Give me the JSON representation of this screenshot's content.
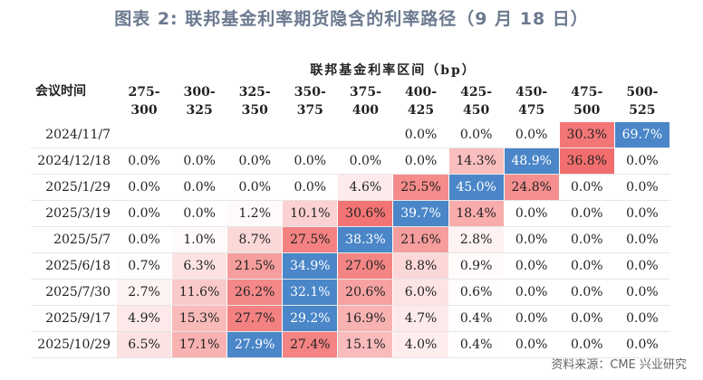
{
  "title": "图表 2:  联邦基金利率期货隐含的利率路径（9 月 18 日）",
  "table": {
    "corner_label": "会议时间",
    "group_header": "联邦基金利率区间（bp）",
    "ranges": [
      [
        "275-",
        "300"
      ],
      [
        "300-",
        "325"
      ],
      [
        "325-",
        "350"
      ],
      [
        "350-",
        "375"
      ],
      [
        "375-",
        "400"
      ],
      [
        "400-",
        "425"
      ],
      [
        "425-",
        "450"
      ],
      [
        "450-",
        "475"
      ],
      [
        "475-",
        "500"
      ],
      [
        "500-",
        "525"
      ]
    ],
    "rows": [
      {
        "date": "2024/11/7",
        "values": [
          "",
          "",
          "",
          "",
          "",
          "0.0%",
          "0.0%",
          "0.0%",
          "30.3%",
          "69.7%"
        ]
      },
      {
        "date": "2024/12/18",
        "values": [
          "0.0%",
          "0.0%",
          "0.0%",
          "0.0%",
          "0.0%",
          "0.0%",
          "14.3%",
          "48.9%",
          "36.8%",
          "0.0%"
        ]
      },
      {
        "date": "2025/1/29",
        "values": [
          "0.0%",
          "0.0%",
          "0.0%",
          "0.0%",
          "4.6%",
          "25.5%",
          "45.0%",
          "24.8%",
          "0.0%",
          "0.0%"
        ]
      },
      {
        "date": "2025/3/19",
        "values": [
          "0.0%",
          "0.0%",
          "1.2%",
          "10.1%",
          "30.6%",
          "39.7%",
          "18.4%",
          "0.0%",
          "0.0%",
          "0.0%"
        ]
      },
      {
        "date": "2025/5/7",
        "values": [
          "0.0%",
          "1.0%",
          "8.7%",
          "27.5%",
          "38.3%",
          "21.6%",
          "2.8%",
          "0.0%",
          "0.0%",
          "0.0%"
        ]
      },
      {
        "date": "2025/6/18",
        "values": [
          "0.7%",
          "6.3%",
          "21.5%",
          "34.9%",
          "27.0%",
          "8.8%",
          "0.9%",
          "0.0%",
          "0.0%",
          "0.0%"
        ]
      },
      {
        "date": "2025/7/30",
        "values": [
          "2.7%",
          "11.6%",
          "26.2%",
          "32.1%",
          "20.6%",
          "6.0%",
          "0.6%",
          "0.0%",
          "0.0%",
          "0.0%"
        ]
      },
      {
        "date": "2025/9/17",
        "values": [
          "4.9%",
          "15.3%",
          "27.7%",
          "29.2%",
          "16.9%",
          "4.7%",
          "0.4%",
          "0.0%",
          "0.0%",
          "0.0%"
        ]
      },
      {
        "date": "2025/10/29",
        "values": [
          "6.5%",
          "17.1%",
          "27.9%",
          "27.4%",
          "15.1%",
          "4.0%",
          "0.4%",
          "0.0%",
          "0.0%",
          "0.0%"
        ]
      }
    ],
    "highlight_color": "#4a86c8"
  },
  "source": "资料来源：CME  兴业研究"
}
